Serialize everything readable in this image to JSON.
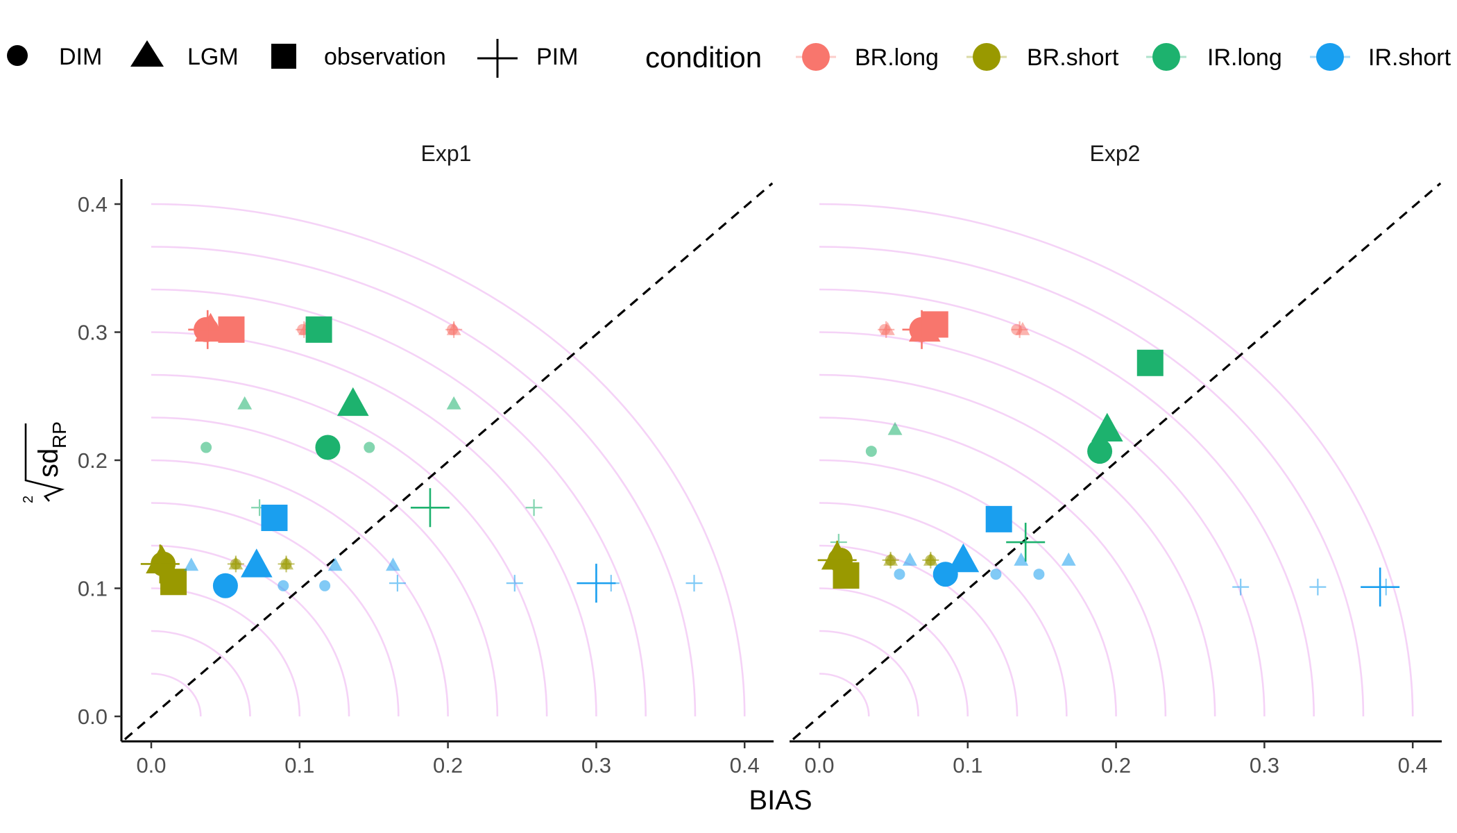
{
  "chart_data": {
    "type": "scatter",
    "xlabel": "BIAS",
    "ylabel_root_index": "2",
    "ylabel_main": "sd",
    "ylabel_sub": "RP",
    "xlim": [
      0,
      0.4
    ],
    "ylim": [
      0,
      0.4
    ],
    "x_ticks": [
      "0.0",
      "0.1",
      "0.2",
      "0.3",
      "0.4"
    ],
    "y_ticks": [
      "0.0",
      "0.1",
      "0.2",
      "0.3",
      "0.4"
    ],
    "reference_line": "dashed y = x",
    "background_arcs": "concentric quarter circles centered at origin, every 0.033 in radius",
    "legend_position": "top",
    "shape_legend": [
      {
        "shape": "circle",
        "label": "DIM"
      },
      {
        "shape": "triangle",
        "label": "LGM"
      },
      {
        "shape": "square",
        "label": "observation"
      },
      {
        "shape": "cross",
        "label": "PIM"
      }
    ],
    "color_legend_title": "condition",
    "color_legend": [
      {
        "label": "BR.long",
        "color": "#F8766D"
      },
      {
        "label": "BR.short",
        "color": "#999900"
      },
      {
        "label": "IR.long",
        "color": "#1DB26E"
      },
      {
        "label": "IR.short",
        "color": "#1A9FEF"
      }
    ],
    "colors": {
      "BR.long": "#F8766D",
      "BR.short": "#999900",
      "IR.long": "#1DB26E",
      "IR.short": "#1A9FEF",
      "arc": "#F5D3F7"
    },
    "panels": [
      {
        "title": "Exp1",
        "points": [
          {
            "cond": "BR.long",
            "shape": "circle",
            "x": 0.037,
            "y": 0.302,
            "size": "large"
          },
          {
            "cond": "BR.long",
            "shape": "triangle",
            "x": 0.04,
            "y": 0.302,
            "size": "large"
          },
          {
            "cond": "BR.long",
            "shape": "cross",
            "x": 0.038,
            "y": 0.302,
            "size": "large"
          },
          {
            "cond": "BR.long",
            "shape": "square",
            "x": 0.054,
            "y": 0.302,
            "size": "large"
          },
          {
            "cond": "BR.long",
            "shape": "circle",
            "x": 0.102,
            "y": 0.302,
            "size": "small"
          },
          {
            "cond": "BR.long",
            "shape": "triangle",
            "x": 0.104,
            "y": 0.302,
            "size": "small"
          },
          {
            "cond": "BR.long",
            "shape": "cross",
            "x": 0.103,
            "y": 0.302,
            "size": "small"
          },
          {
            "cond": "BR.long",
            "shape": "circle",
            "x": 0.203,
            "y": 0.302,
            "size": "small"
          },
          {
            "cond": "BR.long",
            "shape": "triangle",
            "x": 0.204,
            "y": 0.302,
            "size": "small"
          },
          {
            "cond": "BR.long",
            "shape": "cross",
            "x": 0.204,
            "y": 0.302,
            "size": "small"
          },
          {
            "cond": "IR.long",
            "shape": "square",
            "x": 0.113,
            "y": 0.302,
            "size": "large"
          },
          {
            "cond": "IR.long",
            "shape": "triangle",
            "x": 0.063,
            "y": 0.244,
            "size": "small"
          },
          {
            "cond": "IR.long",
            "shape": "triangle",
            "x": 0.136,
            "y": 0.244,
            "size": "large"
          },
          {
            "cond": "IR.long",
            "shape": "triangle",
            "x": 0.204,
            "y": 0.244,
            "size": "small"
          },
          {
            "cond": "IR.long",
            "shape": "circle",
            "x": 0.037,
            "y": 0.21,
            "size": "small"
          },
          {
            "cond": "IR.long",
            "shape": "circle",
            "x": 0.119,
            "y": 0.21,
            "size": "large"
          },
          {
            "cond": "IR.long",
            "shape": "circle",
            "x": 0.147,
            "y": 0.21,
            "size": "small"
          },
          {
            "cond": "IR.long",
            "shape": "cross",
            "x": 0.073,
            "y": 0.163,
            "size": "small"
          },
          {
            "cond": "IR.long",
            "shape": "cross",
            "x": 0.188,
            "y": 0.163,
            "size": "large"
          },
          {
            "cond": "IR.long",
            "shape": "cross",
            "x": 0.258,
            "y": 0.163,
            "size": "small"
          },
          {
            "cond": "IR.short",
            "shape": "square",
            "x": 0.083,
            "y": 0.155,
            "size": "large"
          },
          {
            "cond": "BR.short",
            "shape": "circle",
            "x": 0.008,
            "y": 0.119,
            "size": "large"
          },
          {
            "cond": "BR.short",
            "shape": "triangle",
            "x": 0.007,
            "y": 0.121,
            "size": "large"
          },
          {
            "cond": "BR.short",
            "shape": "cross",
            "x": 0.006,
            "y": 0.119,
            "size": "large"
          },
          {
            "cond": "BR.short",
            "shape": "square",
            "x": 0.015,
            "y": 0.105,
            "size": "large"
          },
          {
            "cond": "BR.short",
            "shape": "circle",
            "x": 0.057,
            "y": 0.119,
            "size": "small"
          },
          {
            "cond": "BR.short",
            "shape": "triangle",
            "x": 0.057,
            "y": 0.119,
            "size": "small"
          },
          {
            "cond": "BR.short",
            "shape": "cross",
            "x": 0.057,
            "y": 0.119,
            "size": "small"
          },
          {
            "cond": "BR.short",
            "shape": "circle",
            "x": 0.091,
            "y": 0.119,
            "size": "small"
          },
          {
            "cond": "BR.short",
            "shape": "triangle",
            "x": 0.091,
            "y": 0.119,
            "size": "small"
          },
          {
            "cond": "BR.short",
            "shape": "cross",
            "x": 0.091,
            "y": 0.119,
            "size": "small"
          },
          {
            "cond": "IR.short",
            "shape": "triangle",
            "x": 0.027,
            "y": 0.118,
            "size": "small"
          },
          {
            "cond": "IR.short",
            "shape": "triangle",
            "x": 0.071,
            "y": 0.118,
            "size": "large"
          },
          {
            "cond": "IR.short",
            "shape": "triangle",
            "x": 0.124,
            "y": 0.118,
            "size": "small"
          },
          {
            "cond": "IR.short",
            "shape": "triangle",
            "x": 0.163,
            "y": 0.118,
            "size": "small"
          },
          {
            "cond": "IR.short",
            "shape": "circle",
            "x": 0.05,
            "y": 0.102,
            "size": "large"
          },
          {
            "cond": "IR.short",
            "shape": "circle",
            "x": 0.089,
            "y": 0.102,
            "size": "small"
          },
          {
            "cond": "IR.short",
            "shape": "circle",
            "x": 0.117,
            "y": 0.102,
            "size": "small"
          },
          {
            "cond": "IR.short",
            "shape": "cross",
            "x": 0.166,
            "y": 0.104,
            "size": "small"
          },
          {
            "cond": "IR.short",
            "shape": "cross",
            "x": 0.245,
            "y": 0.104,
            "size": "small"
          },
          {
            "cond": "IR.short",
            "shape": "cross",
            "x": 0.3,
            "y": 0.104,
            "size": "large"
          },
          {
            "cond": "IR.short",
            "shape": "cross",
            "x": 0.31,
            "y": 0.104,
            "size": "small"
          },
          {
            "cond": "IR.short",
            "shape": "cross",
            "x": 0.366,
            "y": 0.104,
            "size": "small"
          }
        ]
      },
      {
        "title": "Exp2",
        "points": [
          {
            "cond": "BR.long",
            "shape": "circle",
            "x": 0.069,
            "y": 0.302,
            "size": "large"
          },
          {
            "cond": "BR.long",
            "shape": "triangle",
            "x": 0.071,
            "y": 0.302,
            "size": "large"
          },
          {
            "cond": "BR.long",
            "shape": "cross",
            "x": 0.069,
            "y": 0.302,
            "size": "large"
          },
          {
            "cond": "BR.long",
            "shape": "square",
            "x": 0.078,
            "y": 0.306,
            "size": "large"
          },
          {
            "cond": "BR.long",
            "shape": "circle",
            "x": 0.044,
            "y": 0.302,
            "size": "small"
          },
          {
            "cond": "BR.long",
            "shape": "triangle",
            "x": 0.046,
            "y": 0.302,
            "size": "small"
          },
          {
            "cond": "BR.long",
            "shape": "cross",
            "x": 0.045,
            "y": 0.302,
            "size": "small"
          },
          {
            "cond": "BR.long",
            "shape": "circle",
            "x": 0.133,
            "y": 0.302,
            "size": "small"
          },
          {
            "cond": "BR.long",
            "shape": "triangle",
            "x": 0.137,
            "y": 0.302,
            "size": "small"
          },
          {
            "cond": "BR.long",
            "shape": "cross",
            "x": 0.135,
            "y": 0.302,
            "size": "small"
          },
          {
            "cond": "IR.long",
            "shape": "square",
            "x": 0.223,
            "y": 0.276,
            "size": "large"
          },
          {
            "cond": "IR.long",
            "shape": "triangle",
            "x": 0.051,
            "y": 0.224,
            "size": "small"
          },
          {
            "cond": "IR.long",
            "shape": "triangle",
            "x": 0.194,
            "y": 0.224,
            "size": "large"
          },
          {
            "cond": "IR.long",
            "shape": "circle",
            "x": 0.035,
            "y": 0.207,
            "size": "small"
          },
          {
            "cond": "IR.long",
            "shape": "circle",
            "x": 0.189,
            "y": 0.207,
            "size": "large"
          },
          {
            "cond": "IR.long",
            "shape": "cross",
            "x": 0.013,
            "y": 0.136,
            "size": "small"
          },
          {
            "cond": "IR.long",
            "shape": "cross",
            "x": 0.139,
            "y": 0.136,
            "size": "large"
          },
          {
            "cond": "IR.short",
            "shape": "square",
            "x": 0.121,
            "y": 0.154,
            "size": "large"
          },
          {
            "cond": "BR.short",
            "shape": "circle",
            "x": 0.014,
            "y": 0.122,
            "size": "large"
          },
          {
            "cond": "BR.short",
            "shape": "triangle",
            "x": 0.012,
            "y": 0.124,
            "size": "large"
          },
          {
            "cond": "BR.short",
            "shape": "cross",
            "x": 0.012,
            "y": 0.122,
            "size": "large"
          },
          {
            "cond": "BR.short",
            "shape": "square",
            "x": 0.018,
            "y": 0.11,
            "size": "large"
          },
          {
            "cond": "BR.short",
            "shape": "circle",
            "x": 0.048,
            "y": 0.122,
            "size": "small"
          },
          {
            "cond": "BR.short",
            "shape": "triangle",
            "x": 0.048,
            "y": 0.122,
            "size": "small"
          },
          {
            "cond": "BR.short",
            "shape": "cross",
            "x": 0.048,
            "y": 0.122,
            "size": "small"
          },
          {
            "cond": "BR.short",
            "shape": "circle",
            "x": 0.075,
            "y": 0.122,
            "size": "small"
          },
          {
            "cond": "BR.short",
            "shape": "triangle",
            "x": 0.075,
            "y": 0.122,
            "size": "small"
          },
          {
            "cond": "BR.short",
            "shape": "cross",
            "x": 0.075,
            "y": 0.122,
            "size": "small"
          },
          {
            "cond": "IR.short",
            "shape": "triangle",
            "x": 0.061,
            "y": 0.122,
            "size": "small"
          },
          {
            "cond": "IR.short",
            "shape": "triangle",
            "x": 0.097,
            "y": 0.122,
            "size": "large"
          },
          {
            "cond": "IR.short",
            "shape": "triangle",
            "x": 0.136,
            "y": 0.122,
            "size": "small"
          },
          {
            "cond": "IR.short",
            "shape": "triangle",
            "x": 0.168,
            "y": 0.122,
            "size": "small"
          },
          {
            "cond": "IR.short",
            "shape": "circle",
            "x": 0.054,
            "y": 0.111,
            "size": "small"
          },
          {
            "cond": "IR.short",
            "shape": "circle",
            "x": 0.085,
            "y": 0.111,
            "size": "large"
          },
          {
            "cond": "IR.short",
            "shape": "circle",
            "x": 0.119,
            "y": 0.111,
            "size": "small"
          },
          {
            "cond": "IR.short",
            "shape": "circle",
            "x": 0.148,
            "y": 0.111,
            "size": "small"
          },
          {
            "cond": "IR.short",
            "shape": "cross",
            "x": 0.284,
            "y": 0.101,
            "size": "small"
          },
          {
            "cond": "IR.short",
            "shape": "cross",
            "x": 0.336,
            "y": 0.101,
            "size": "small"
          },
          {
            "cond": "IR.short",
            "shape": "cross",
            "x": 0.378,
            "y": 0.101,
            "size": "large"
          },
          {
            "cond": "IR.short",
            "shape": "cross",
            "x": 0.382,
            "y": 0.101,
            "size": "small"
          }
        ]
      }
    ]
  }
}
